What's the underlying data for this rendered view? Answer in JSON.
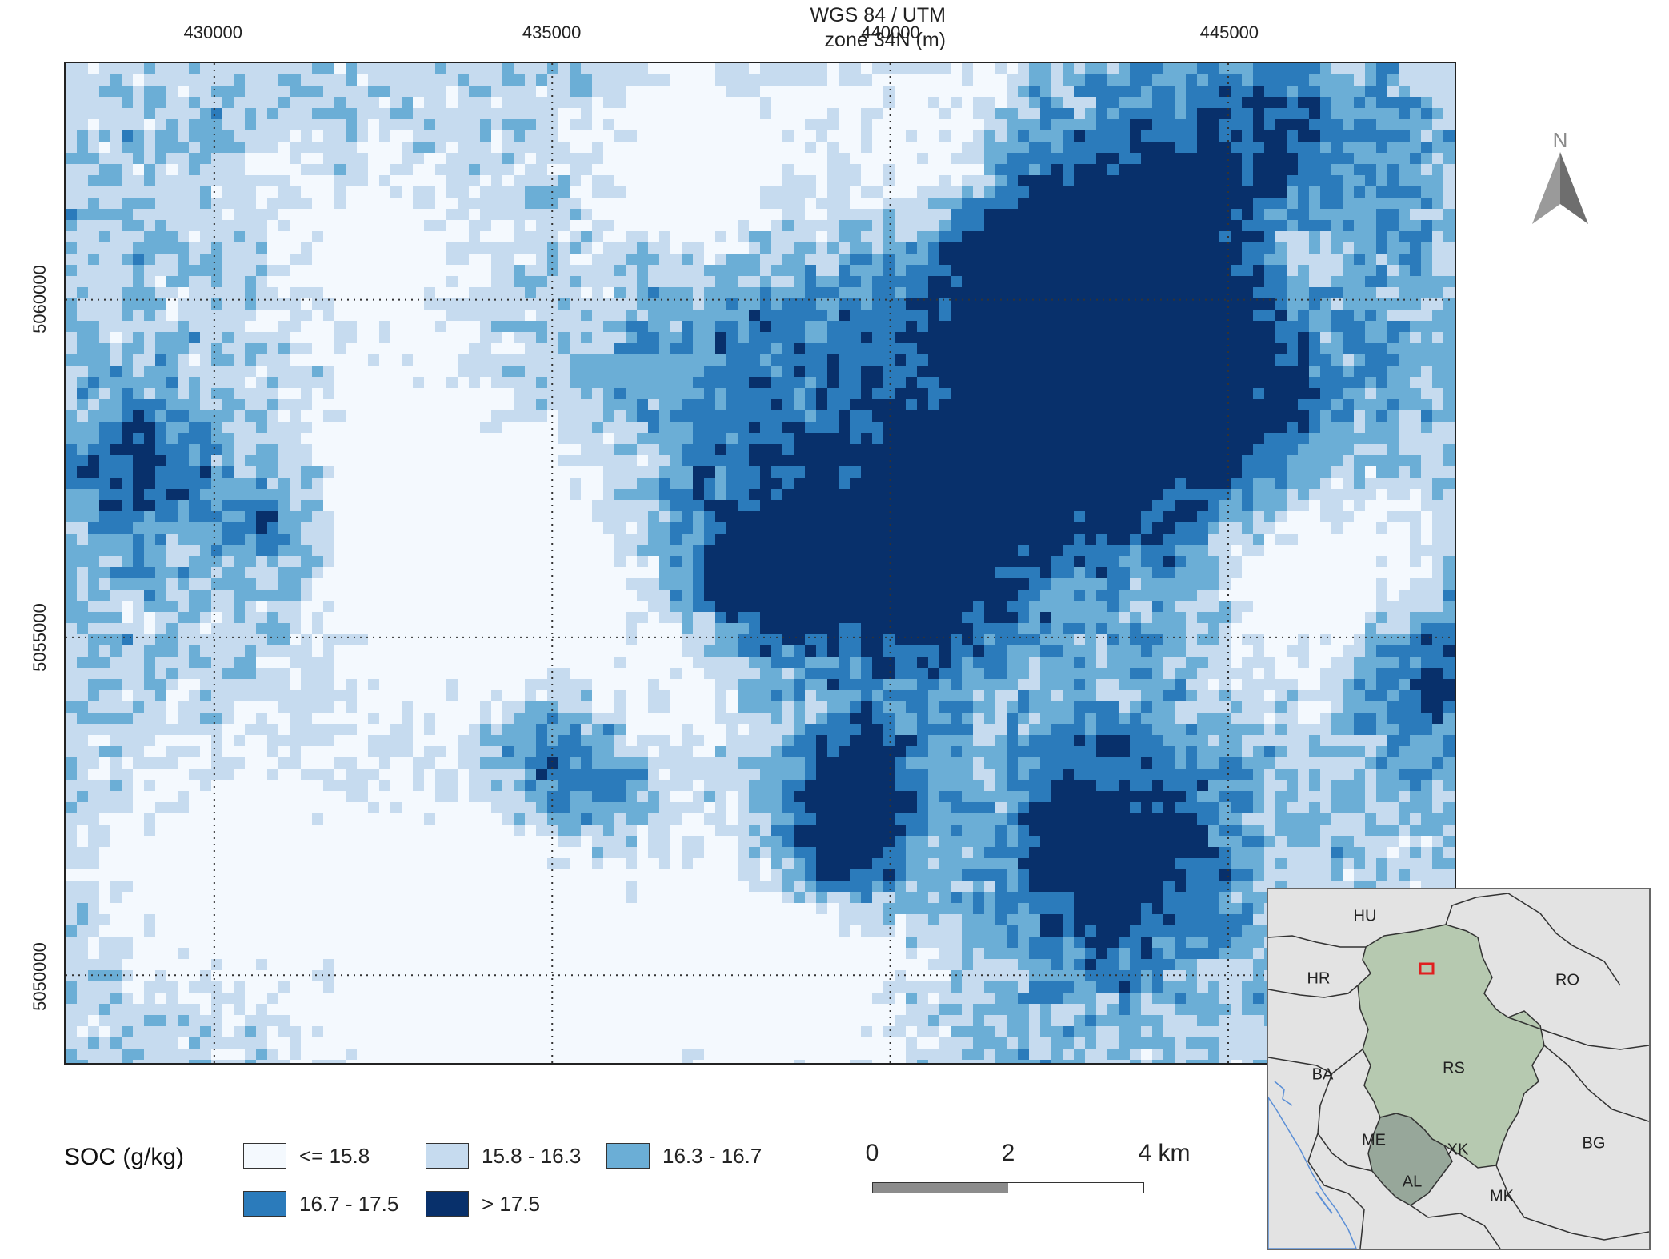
{
  "map": {
    "crs_line1": "WGS 84 / UTM",
    "crs_line2": "zone 34N (m)",
    "x_ticks": [
      {
        "value": 430000,
        "label": "430000"
      },
      {
        "value": 435000,
        "label": "435000"
      },
      {
        "value": 440000,
        "label": "440000"
      },
      {
        "value": 445000,
        "label": "445000"
      }
    ],
    "y_ticks": [
      {
        "value": 5060000,
        "label": "5060000"
      },
      {
        "value": 5055000,
        "label": "5055000"
      },
      {
        "value": 5050000,
        "label": "5050000"
      }
    ],
    "extent": {
      "xmin": 427800,
      "xmax": 448350,
      "ymin": 5048700,
      "ymax": 5063500
    },
    "grid_style": "dotted",
    "classes": [
      {
        "label": "<= 15.8",
        "color": "#f4f9fe"
      },
      {
        "label": "15.8 - 16.3",
        "color": "#c6dbef"
      },
      {
        "label": "16.3 - 16.7",
        "color": "#6baed6"
      },
      {
        "label": "16.7 - 17.5",
        "color": "#2b7bbb"
      },
      {
        "label": "> 17.5",
        "color": "#08306b"
      }
    ]
  },
  "north_arrow": {
    "letter": "N",
    "color": "#8a8a8a"
  },
  "legend": {
    "title": "SOC (g/kg)"
  },
  "scale_bar": {
    "labels": [
      "0",
      "2",
      "4 km"
    ],
    "fill_colors": [
      "#8c8c8c",
      "#ffffff"
    ]
  },
  "inset": {
    "countries": [
      {
        "code": "HU"
      },
      {
        "code": "HR"
      },
      {
        "code": "RO"
      },
      {
        "code": "BA"
      },
      {
        "code": "RS"
      },
      {
        "code": "ME"
      },
      {
        "code": "XK"
      },
      {
        "code": "BG"
      },
      {
        "code": "AL"
      },
      {
        "code": "MK"
      }
    ],
    "colors": {
      "background": "#e3e3e3",
      "rs": "#b6c9b0",
      "xk": "#97a79a",
      "border": "#333333",
      "water": "#5b8fd6",
      "study_area": "#e01f1f"
    }
  }
}
